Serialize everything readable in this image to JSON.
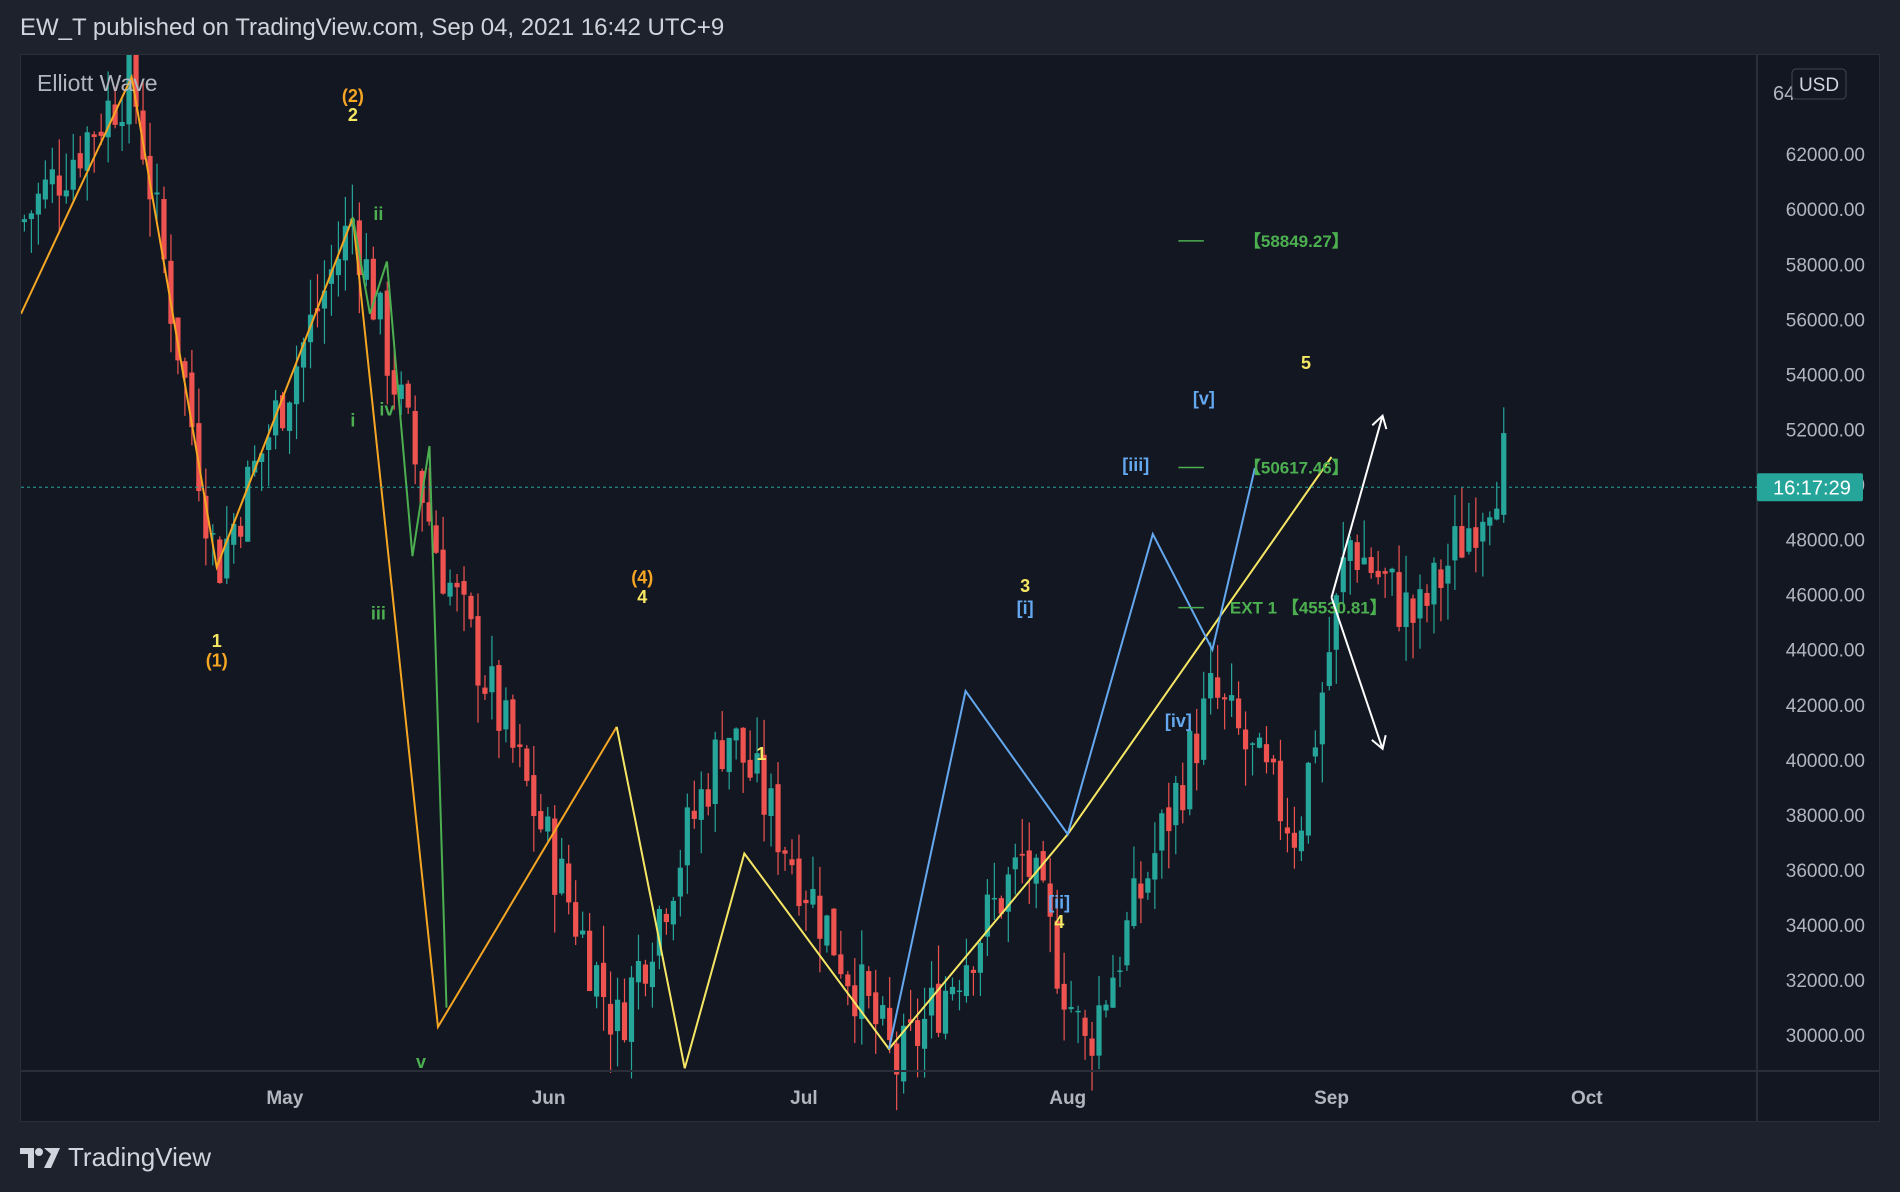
{
  "header": {
    "publish_line": "EW_T published on TradingView.com, Sep 04, 2021 16:42 UTC+9"
  },
  "footer": {
    "brand": "TradingView",
    "logo_icon": "tradingview-logo-icon"
  },
  "chart": {
    "indicator_label": "Elliott Wave",
    "currency_badge": "USD",
    "countdown": "16:17:29",
    "current_price_marker": 49900,
    "top_price_label_partial": "64",
    "colors": {
      "background": "#131722",
      "up_candle": "#26a69a",
      "down_candle": "#ef5350",
      "orange_wave": "#f5a623",
      "yellow_wave": "#f5e663",
      "blue_wave": "#64a8f0",
      "green_wave": "#4caf50",
      "arrows": "#ffffff",
      "price_line": "#26a69a"
    }
  },
  "chart_data": {
    "type": "candlestick",
    "title": "",
    "ylim": [
      28700,
      65600
    ],
    "yticks": [
      30000,
      32000,
      34000,
      36000,
      38000,
      40000,
      42000,
      44000,
      46000,
      48000,
      50000,
      52000,
      54000,
      56000,
      58000,
      60000,
      62000
    ],
    "ytick_labels": [
      "30000.00",
      "32000.00",
      "34000.00",
      "36000.00",
      "38000.00",
      "40000.00",
      "42000.00",
      "44000.00",
      "46000.00",
      "48000.00",
      "50000.00",
      "52000.00",
      "54000.00",
      "56000.00",
      "58000.00",
      "60000.00",
      "62000.00"
    ],
    "x_months": [
      "May",
      "Jun",
      "Jul",
      "Aug",
      "Sep",
      "Oct"
    ],
    "x_month_days": [
      31,
      62,
      92,
      123,
      154,
      184
    ],
    "x_range_days": [
      0,
      204
    ],
    "grid": false,
    "candle_path_days": [
      0,
      13,
      23,
      39,
      49,
      70,
      83,
      103,
      118,
      125,
      140,
      150,
      156,
      164,
      175
    ],
    "candle_path_prices": [
      59500,
      64800,
      47000,
      59700,
      47500,
      30300,
      41200,
      28800,
      36500,
      29500,
      42400,
      37300,
      48000,
      45000,
      51300
    ],
    "series": [
      {
        "name": "",
        "color": "#f5a623",
        "points": [
          [
            0,
            56200
          ],
          [
            13,
            64800
          ],
          [
            23,
            47000
          ],
          [
            39,
            59700
          ],
          [
            49,
            30300
          ],
          [
            70,
            41200
          ]
        ]
      },
      {
        "name": "",
        "color": "#f5e663",
        "points": [
          [
            70,
            41200
          ],
          [
            78,
            28800
          ],
          [
            85,
            36600
          ],
          [
            102,
            29500
          ],
          [
            123,
            37300
          ],
          [
            154,
            51000
          ]
        ]
      },
      {
        "name": "",
        "color": "#64a8f0",
        "points": [
          [
            102,
            29500
          ],
          [
            111,
            42500
          ],
          [
            123,
            37300
          ],
          [
            133,
            48200
          ],
          [
            140,
            44000
          ],
          [
            145,
            50600
          ]
        ]
      },
      {
        "name": "",
        "color": "#4caf50",
        "points": [
          [
            39,
            59700
          ],
          [
            41,
            56200
          ],
          [
            43,
            58100
          ],
          [
            46,
            47400
          ],
          [
            48,
            51400
          ],
          [
            50,
            31000
          ]
        ]
      }
    ],
    "wave_labels": [
      {
        "text": "(2)",
        "day": 39,
        "price": 63900,
        "color": "#f5a623"
      },
      {
        "text": "2",
        "day": 39,
        "price": 63200,
        "color": "#f5e663"
      },
      {
        "text": "1",
        "day": 23,
        "price": 44100,
        "color": "#f5e663"
      },
      {
        "text": "(1)",
        "day": 23,
        "price": 43400,
        "color": "#f5a623"
      },
      {
        "text": "(4)",
        "day": 73,
        "price": 46400,
        "color": "#f5a623"
      },
      {
        "text": "4",
        "day": 73,
        "price": 45700,
        "color": "#f5e663"
      },
      {
        "text": "ii",
        "day": 42,
        "price": 59600,
        "color": "#4caf50"
      },
      {
        "text": "i",
        "day": 39,
        "price": 52100,
        "color": "#4caf50"
      },
      {
        "text": "iv",
        "day": 43,
        "price": 52500,
        "color": "#4caf50"
      },
      {
        "text": "iii",
        "day": 42,
        "price": 45100,
        "color": "#4caf50"
      },
      {
        "text": "v",
        "day": 47,
        "price": 28800,
        "color": "#4caf50"
      },
      {
        "text": "1",
        "day": 87,
        "price": 40000,
        "color": "#f5e663"
      },
      {
        "text": "3",
        "day": 118,
        "price": 46100,
        "color": "#f5e663"
      },
      {
        "text": "[i]",
        "day": 118,
        "price": 45300,
        "color": "#64a8f0"
      },
      {
        "text": "[ii]",
        "day": 122,
        "price": 34600,
        "color": "#64a8f0"
      },
      {
        "text": "4",
        "day": 122,
        "price": 33900,
        "color": "#f5e663"
      },
      {
        "text": "[iii]",
        "day": 131,
        "price": 50500,
        "color": "#64a8f0"
      },
      {
        "text": "[iv]",
        "day": 136,
        "price": 41200,
        "color": "#64a8f0"
      },
      {
        "text": "[v]",
        "day": 139,
        "price": 52900,
        "color": "#64a8f0"
      },
      {
        "text": "5",
        "day": 151,
        "price": 54200,
        "color": "#f5e663"
      }
    ],
    "targets": [
      {
        "text": "【58849.27】",
        "price": 58849.27,
        "color": "#4caf50",
        "from_day": 136,
        "to_day": 139
      },
      {
        "text": "【50617.46】",
        "price": 50617.46,
        "color": "#4caf50",
        "from_day": 136,
        "to_day": 139
      },
      {
        "text": "EXT 1 【45530.81】",
        "price": 45530.81,
        "color": "#4caf50",
        "from_day": 136,
        "to_day": 139
      }
    ],
    "arrows": [
      {
        "from_day": 154,
        "from_price": 45900,
        "to_day": 160,
        "to_price": 52500
      },
      {
        "from_day": 154,
        "from_price": 45900,
        "to_day": 160,
        "to_price": 40400
      }
    ]
  }
}
